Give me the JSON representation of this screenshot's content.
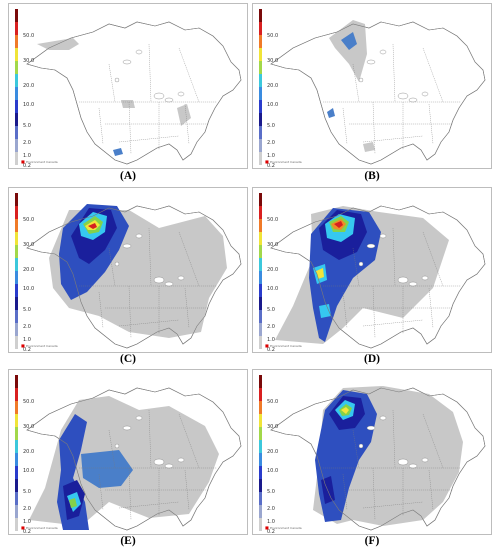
{
  "colorbar": {
    "ticks": [
      "50.0",
      "30.0",
      "20.0",
      "10.0",
      "5.0",
      "2.0",
      "1.0",
      "0.2"
    ],
    "colors": [
      "#7a0a0a",
      "#d92020",
      "#f07a28",
      "#f0e438",
      "#a2d84a",
      "#3cc8dc",
      "#3a8ce0",
      "#2a3ccc",
      "#1a1a8c",
      "#5a6ec8",
      "#9aa6cf",
      "#cfcfcf"
    ]
  },
  "map_colors": {
    "grey": "#c8c8c8",
    "blue_light": "#4a7fc9",
    "blue": "#2e4fbf",
    "navy": "#1a1f9c",
    "cyan": "#36c8f0",
    "green": "#84d24a",
    "yellow": "#f2e53b",
    "orange": "#f08a26",
    "red": "#d62020",
    "border": "#7a7a7a"
  },
  "panels": [
    {
      "id": "A",
      "label": "(A)",
      "flag_text": "Environment Canada"
    },
    {
      "id": "B",
      "label": "(B)",
      "flag_text": "Environment Canada"
    },
    {
      "id": "C",
      "label": "(C)",
      "flag_text": "Environment Canada"
    },
    {
      "id": "D",
      "label": "(D)",
      "flag_text": "Environment Canada"
    },
    {
      "id": "E",
      "label": "(E)",
      "flag_text": "Environment Canada"
    },
    {
      "id": "F",
      "label": "(F)",
      "flag_text": "Environment Canada"
    }
  ]
}
